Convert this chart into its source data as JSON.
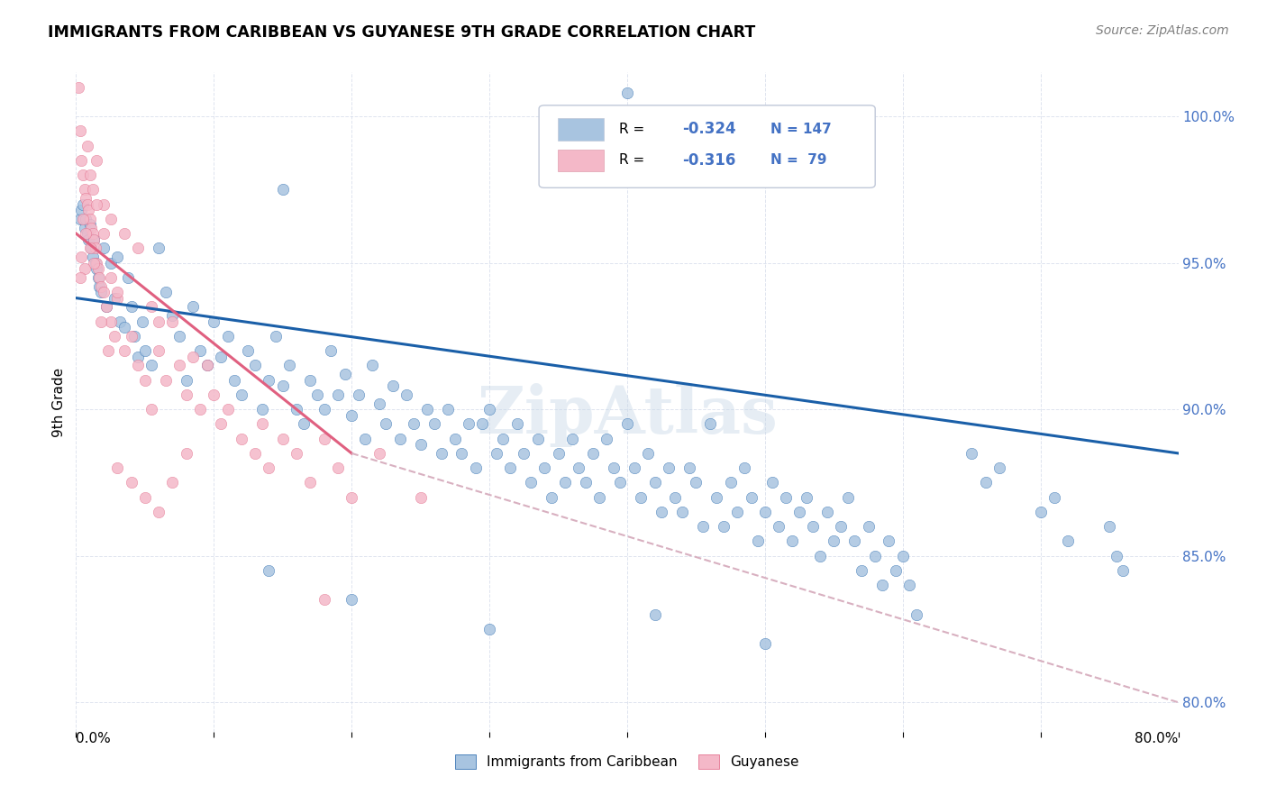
{
  "title": "IMMIGRANTS FROM CARIBBEAN VS GUYANESE 9TH GRADE CORRELATION CHART",
  "source": "Source: ZipAtlas.com",
  "ylabel": "9th Grade",
  "yticks": [
    80.0,
    85.0,
    90.0,
    95.0,
    100.0
  ],
  "xlim": [
    0.0,
    80.0
  ],
  "ylim": [
    79.0,
    101.5
  ],
  "watermark": "ZipAtlas",
  "legend_label1": "Immigrants from Caribbean",
  "legend_label2": "Guyanese",
  "color_blue": "#a8c4e0",
  "color_pink": "#f4b8c8",
  "line_blue": "#1a5fa8",
  "line_pink": "#e06080",
  "line_dashed_color": "#d8b0c0",
  "blue_scatter": [
    [
      0.3,
      96.5
    ],
    [
      0.4,
      96.8
    ],
    [
      0.5,
      97.0
    ],
    [
      0.6,
      96.2
    ],
    [
      0.7,
      96.5
    ],
    [
      0.8,
      96.0
    ],
    [
      0.9,
      95.8
    ],
    [
      1.0,
      96.3
    ],
    [
      1.1,
      95.5
    ],
    [
      1.2,
      95.2
    ],
    [
      1.3,
      95.8
    ],
    [
      1.4,
      95.0
    ],
    [
      1.5,
      94.8
    ],
    [
      1.6,
      94.5
    ],
    [
      1.7,
      94.2
    ],
    [
      1.8,
      94.0
    ],
    [
      2.0,
      95.5
    ],
    [
      2.2,
      93.5
    ],
    [
      2.5,
      95.0
    ],
    [
      2.8,
      93.8
    ],
    [
      3.0,
      95.2
    ],
    [
      3.2,
      93.0
    ],
    [
      3.5,
      92.8
    ],
    [
      3.8,
      94.5
    ],
    [
      4.0,
      93.5
    ],
    [
      4.2,
      92.5
    ],
    [
      4.5,
      91.8
    ],
    [
      4.8,
      93.0
    ],
    [
      5.0,
      92.0
    ],
    [
      5.5,
      91.5
    ],
    [
      6.0,
      95.5
    ],
    [
      6.5,
      94.0
    ],
    [
      7.0,
      93.2
    ],
    [
      7.5,
      92.5
    ],
    [
      8.0,
      91.0
    ],
    [
      8.5,
      93.5
    ],
    [
      9.0,
      92.0
    ],
    [
      9.5,
      91.5
    ],
    [
      10.0,
      93.0
    ],
    [
      10.5,
      91.8
    ],
    [
      11.0,
      92.5
    ],
    [
      11.5,
      91.0
    ],
    [
      12.0,
      90.5
    ],
    [
      12.5,
      92.0
    ],
    [
      13.0,
      91.5
    ],
    [
      13.5,
      90.0
    ],
    [
      14.0,
      91.0
    ],
    [
      14.5,
      92.5
    ],
    [
      15.0,
      90.8
    ],
    [
      15.5,
      91.5
    ],
    [
      16.0,
      90.0
    ],
    [
      16.5,
      89.5
    ],
    [
      17.0,
      91.0
    ],
    [
      17.5,
      90.5
    ],
    [
      18.0,
      90.0
    ],
    [
      18.5,
      92.0
    ],
    [
      19.0,
      90.5
    ],
    [
      19.5,
      91.2
    ],
    [
      20.0,
      89.8
    ],
    [
      20.5,
      90.5
    ],
    [
      21.0,
      89.0
    ],
    [
      21.5,
      91.5
    ],
    [
      22.0,
      90.2
    ],
    [
      22.5,
      89.5
    ],
    [
      23.0,
      90.8
    ],
    [
      23.5,
      89.0
    ],
    [
      24.0,
      90.5
    ],
    [
      24.5,
      89.5
    ],
    [
      25.0,
      88.8
    ],
    [
      25.5,
      90.0
    ],
    [
      26.0,
      89.5
    ],
    [
      26.5,
      88.5
    ],
    [
      27.0,
      90.0
    ],
    [
      27.5,
      89.0
    ],
    [
      28.0,
      88.5
    ],
    [
      28.5,
      89.5
    ],
    [
      29.0,
      88.0
    ],
    [
      29.5,
      89.5
    ],
    [
      30.0,
      90.0
    ],
    [
      30.5,
      88.5
    ],
    [
      31.0,
      89.0
    ],
    [
      31.5,
      88.0
    ],
    [
      32.0,
      89.5
    ],
    [
      32.5,
      88.5
    ],
    [
      33.0,
      87.5
    ],
    [
      33.5,
      89.0
    ],
    [
      34.0,
      88.0
    ],
    [
      34.5,
      87.0
    ],
    [
      35.0,
      88.5
    ],
    [
      35.5,
      87.5
    ],
    [
      36.0,
      89.0
    ],
    [
      36.5,
      88.0
    ],
    [
      37.0,
      87.5
    ],
    [
      37.5,
      88.5
    ],
    [
      38.0,
      87.0
    ],
    [
      38.5,
      89.0
    ],
    [
      39.0,
      88.0
    ],
    [
      39.5,
      87.5
    ],
    [
      40.0,
      89.5
    ],
    [
      40.5,
      88.0
    ],
    [
      41.0,
      87.0
    ],
    [
      41.5,
      88.5
    ],
    [
      42.0,
      87.5
    ],
    [
      42.5,
      86.5
    ],
    [
      43.0,
      88.0
    ],
    [
      43.5,
      87.0
    ],
    [
      44.0,
      86.5
    ],
    [
      44.5,
      88.0
    ],
    [
      45.0,
      87.5
    ],
    [
      45.5,
      86.0
    ],
    [
      46.0,
      89.5
    ],
    [
      46.5,
      87.0
    ],
    [
      47.0,
      86.0
    ],
    [
      47.5,
      87.5
    ],
    [
      48.0,
      86.5
    ],
    [
      48.5,
      88.0
    ],
    [
      49.0,
      87.0
    ],
    [
      49.5,
      85.5
    ],
    [
      50.0,
      86.5
    ],
    [
      50.5,
      87.5
    ],
    [
      51.0,
      86.0
    ],
    [
      51.5,
      87.0
    ],
    [
      52.0,
      85.5
    ],
    [
      52.5,
      86.5
    ],
    [
      53.0,
      87.0
    ],
    [
      53.5,
      86.0
    ],
    [
      54.0,
      85.0
    ],
    [
      54.5,
      86.5
    ],
    [
      55.0,
      85.5
    ],
    [
      55.5,
      86.0
    ],
    [
      56.0,
      87.0
    ],
    [
      56.5,
      85.5
    ],
    [
      57.0,
      84.5
    ],
    [
      57.5,
      86.0
    ],
    [
      58.0,
      85.0
    ],
    [
      58.5,
      84.0
    ],
    [
      59.0,
      85.5
    ],
    [
      59.5,
      84.5
    ],
    [
      60.0,
      85.0
    ],
    [
      60.5,
      84.0
    ],
    [
      61.0,
      83.0
    ],
    [
      14.0,
      84.5
    ],
    [
      20.0,
      83.5
    ],
    [
      30.0,
      82.5
    ],
    [
      42.0,
      83.0
    ],
    [
      50.0,
      82.0
    ],
    [
      40.0,
      100.8
    ],
    [
      15.0,
      97.5
    ],
    [
      65.0,
      88.5
    ],
    [
      66.0,
      87.5
    ],
    [
      67.0,
      88.0
    ],
    [
      70.0,
      86.5
    ],
    [
      71.0,
      87.0
    ],
    [
      72.0,
      85.5
    ],
    [
      75.0,
      86.0
    ],
    [
      75.5,
      85.0
    ],
    [
      76.0,
      84.5
    ]
  ],
  "pink_scatter": [
    [
      0.2,
      101.0
    ],
    [
      0.3,
      99.5
    ],
    [
      0.4,
      98.5
    ],
    [
      0.5,
      98.0
    ],
    [
      0.6,
      97.5
    ],
    [
      0.7,
      97.2
    ],
    [
      0.8,
      97.0
    ],
    [
      0.9,
      96.8
    ],
    [
      1.0,
      96.5
    ],
    [
      1.1,
      96.2
    ],
    [
      1.2,
      96.0
    ],
    [
      1.3,
      95.8
    ],
    [
      1.4,
      95.5
    ],
    [
      1.5,
      95.0
    ],
    [
      1.6,
      94.8
    ],
    [
      1.7,
      94.5
    ],
    [
      1.8,
      94.2
    ],
    [
      2.0,
      94.0
    ],
    [
      2.2,
      93.5
    ],
    [
      2.5,
      93.0
    ],
    [
      2.8,
      92.5
    ],
    [
      3.0,
      93.8
    ],
    [
      3.5,
      92.0
    ],
    [
      4.0,
      92.5
    ],
    [
      4.5,
      91.5
    ],
    [
      5.0,
      91.0
    ],
    [
      5.5,
      93.5
    ],
    [
      6.0,
      92.0
    ],
    [
      6.5,
      91.0
    ],
    [
      7.0,
      93.0
    ],
    [
      7.5,
      91.5
    ],
    [
      8.0,
      90.5
    ],
    [
      8.5,
      91.8
    ],
    [
      9.0,
      90.0
    ],
    [
      9.5,
      91.5
    ],
    [
      10.0,
      90.5
    ],
    [
      10.5,
      89.5
    ],
    [
      11.0,
      90.0
    ],
    [
      12.0,
      89.0
    ],
    [
      13.0,
      88.5
    ],
    [
      13.5,
      89.5
    ],
    [
      14.0,
      88.0
    ],
    [
      15.0,
      89.0
    ],
    [
      16.0,
      88.5
    ],
    [
      17.0,
      87.5
    ],
    [
      18.0,
      89.0
    ],
    [
      19.0,
      88.0
    ],
    [
      20.0,
      87.0
    ],
    [
      22.0,
      88.5
    ],
    [
      25.0,
      87.0
    ],
    [
      3.0,
      88.0
    ],
    [
      4.0,
      87.5
    ],
    [
      5.0,
      87.0
    ],
    [
      6.0,
      86.5
    ],
    [
      7.0,
      87.5
    ],
    [
      1.5,
      98.5
    ],
    [
      2.0,
      97.0
    ],
    [
      2.5,
      96.5
    ],
    [
      3.5,
      96.0
    ],
    [
      4.5,
      95.5
    ],
    [
      0.8,
      99.0
    ],
    [
      1.0,
      98.0
    ],
    [
      1.2,
      97.5
    ],
    [
      1.5,
      97.0
    ],
    [
      2.0,
      96.0
    ],
    [
      0.5,
      96.5
    ],
    [
      0.7,
      96.0
    ],
    [
      1.0,
      95.5
    ],
    [
      1.3,
      95.0
    ],
    [
      2.5,
      94.5
    ],
    [
      18.0,
      83.5
    ],
    [
      3.0,
      94.0
    ],
    [
      6.0,
      93.0
    ],
    [
      0.4,
      95.2
    ],
    [
      0.6,
      94.8
    ],
    [
      0.3,
      94.5
    ],
    [
      1.8,
      93.0
    ],
    [
      2.3,
      92.0
    ],
    [
      5.5,
      90.0
    ],
    [
      8.0,
      88.5
    ]
  ],
  "blue_trend_x": [
    0.0,
    80.0
  ],
  "blue_trend_y": [
    93.8,
    88.5
  ],
  "pink_trend_x": [
    0.0,
    20.0
  ],
  "pink_trend_y": [
    96.0,
    88.5
  ],
  "dashed_trend_x": [
    20.0,
    80.0
  ],
  "dashed_trend_y": [
    88.5,
    80.0
  ]
}
